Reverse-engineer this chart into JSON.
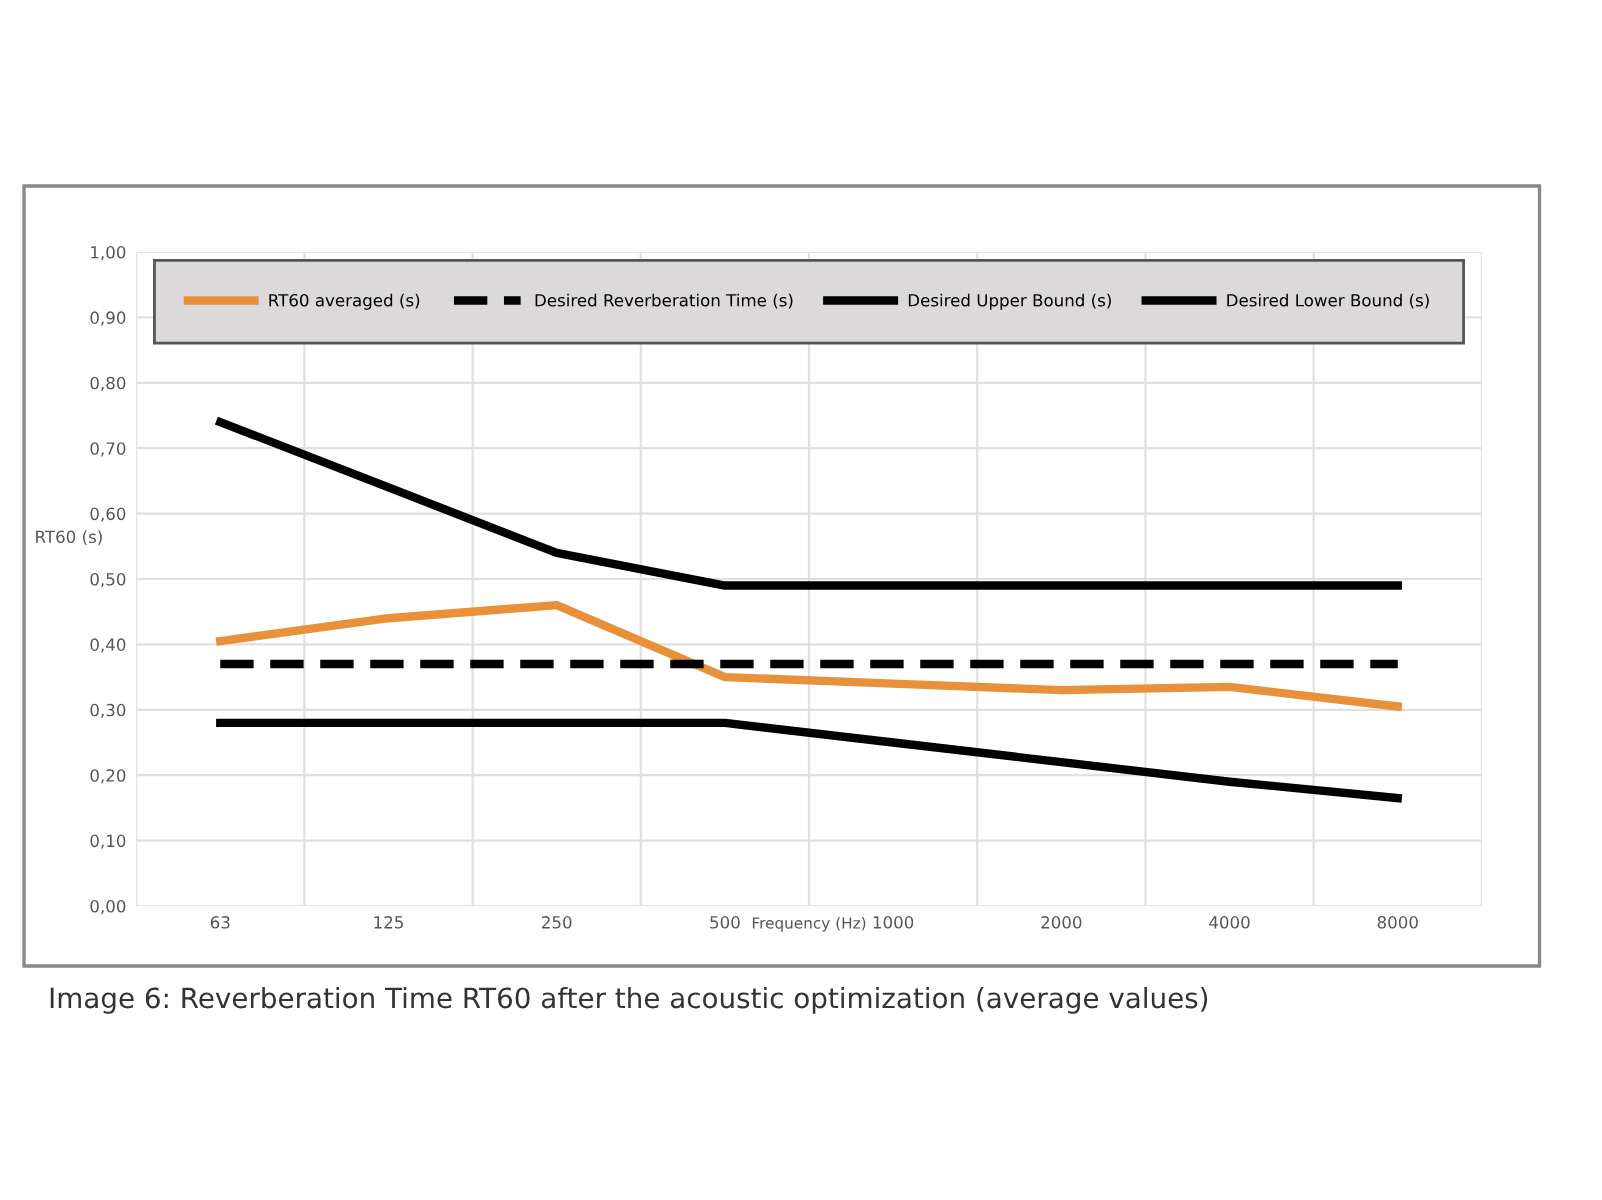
{
  "chart_data": {
    "type": "line",
    "xlabel": "Frequency (Hz)",
    "ylabel": "RT60 (s)",
    "categories": [
      "63",
      "125",
      "250",
      "500",
      "1000",
      "2000",
      "4000",
      "8000"
    ],
    "series": [
      {
        "name": "RT60 averaged (s)",
        "color": "#e8913a",
        "values": [
          0.405,
          0.44,
          0.46,
          0.35,
          0.34,
          0.33,
          0.335,
          0.305
        ]
      },
      {
        "name": "Desired Reverberation Time (s)",
        "color": "#000000",
        "line_style": "dashed",
        "values": [
          0.37,
          0.37,
          0.37,
          0.37,
          0.37,
          0.37,
          0.37,
          0.37
        ]
      },
      {
        "name": "Desired Upper Bound (s)",
        "color": "#000000",
        "values": [
          0.74,
          0.64,
          0.54,
          0.49,
          0.49,
          0.49,
          0.49,
          0.49
        ]
      },
      {
        "name": "Desired Lower Bound (s)",
        "color": "#000000",
        "values": [
          0.28,
          0.28,
          0.28,
          0.28,
          0.25,
          0.22,
          0.19,
          0.165
        ]
      }
    ],
    "ylim": [
      0,
      1
    ],
    "yticks": [
      {
        "value": 0,
        "label": "0,00"
      },
      {
        "value": 0.1,
        "label": "0,10"
      },
      {
        "value": 0.2,
        "label": "0,20"
      },
      {
        "value": 0.3,
        "label": "0,30"
      },
      {
        "value": 0.4,
        "label": "0,40"
      },
      {
        "value": 0.5,
        "label": "0,50"
      },
      {
        "value": 0.6,
        "label": "0,60"
      },
      {
        "value": 0.7,
        "label": "0,70"
      },
      {
        "value": 0.8,
        "label": "0,80"
      },
      {
        "value": 0.9,
        "label": "0,90"
      },
      {
        "value": 1,
        "label": "1,00"
      }
    ],
    "grid": true,
    "legend": "top",
    "line_style": "solid",
    "marker": "none",
    "annotations": [
      "Image 6: Reverberation Time RT60 after the acoustic optimization (average values)"
    ]
  }
}
